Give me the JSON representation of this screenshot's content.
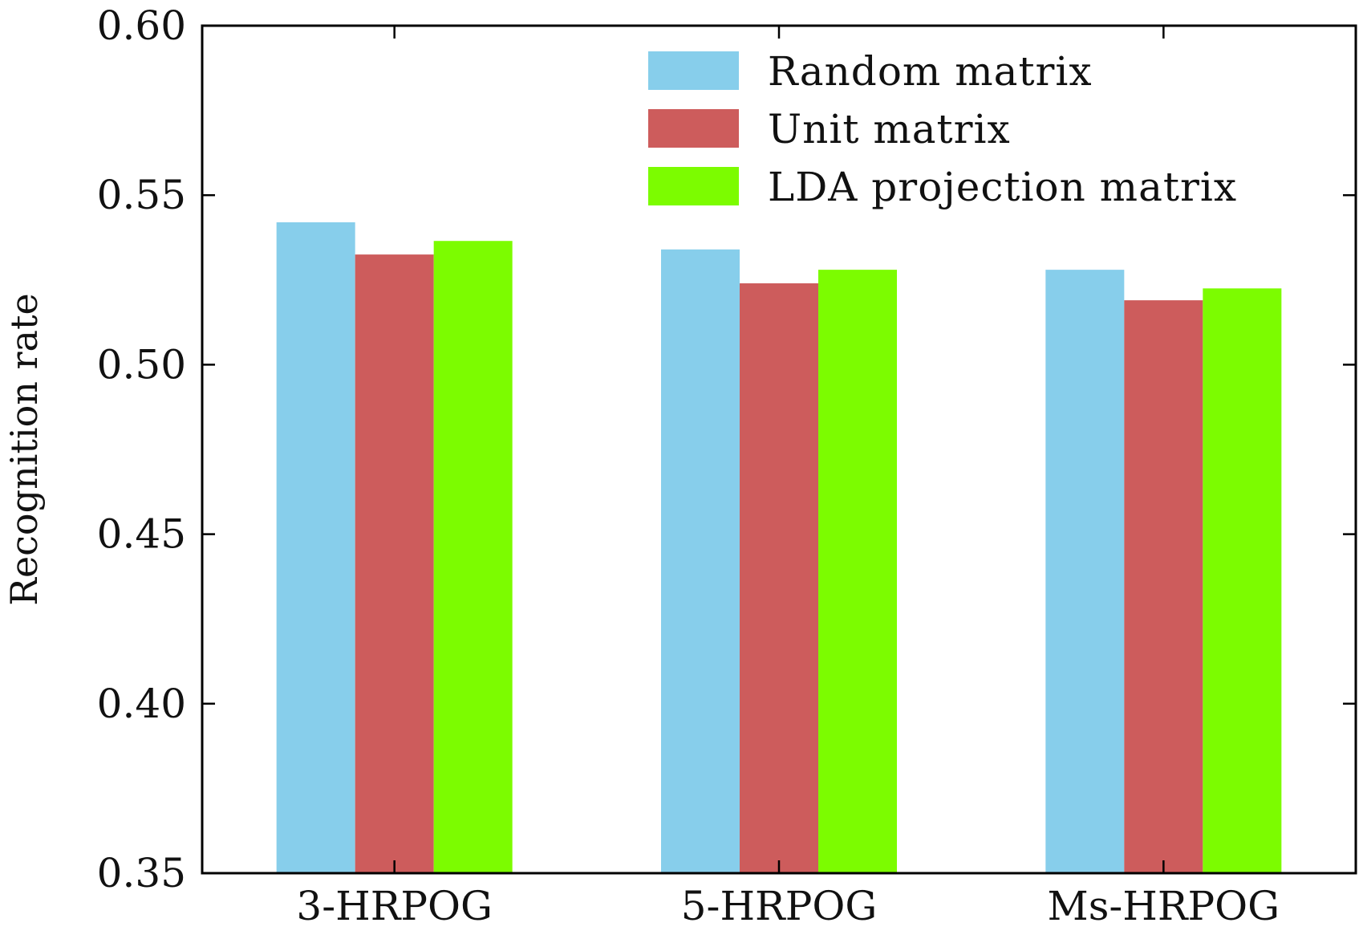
{
  "chart_data": {
    "type": "bar",
    "categories": [
      "3-HRPOG",
      "5-HRPOG",
      "Ms-HRPOG"
    ],
    "series": [
      {
        "name": "Random matrix",
        "color": "#87ceeb",
        "values": [
          0.542,
          0.534,
          0.528
        ]
      },
      {
        "name": "Unit matrix",
        "color": "#cd5c5c",
        "values": [
          0.5325,
          0.524,
          0.519
        ]
      },
      {
        "name": "LDA projection matrix",
        "color": "#7cfc00",
        "values": [
          0.5365,
          0.528,
          0.5225
        ]
      }
    ],
    "ylabel": "Recognition rate",
    "xlabel": "",
    "ylim": [
      0.35,
      0.6
    ],
    "yticks": [
      "0.35",
      "0.40",
      "0.45",
      "0.50",
      "0.55",
      "0.60"
    ],
    "grid": false,
    "legend_position": "top-right"
  }
}
